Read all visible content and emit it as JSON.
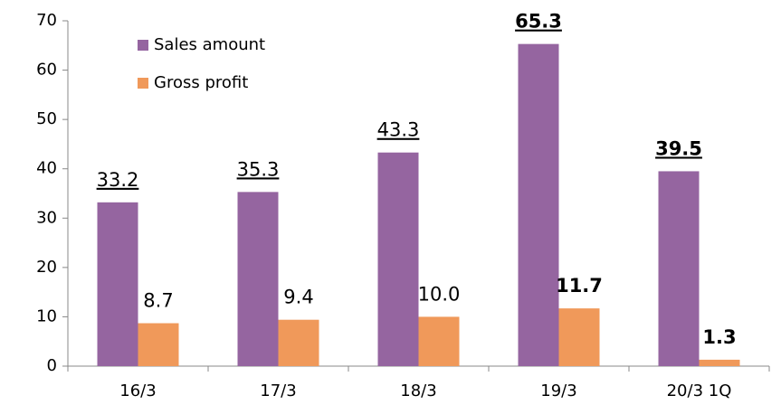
{
  "chart_data": {
    "type": "bar",
    "categories": [
      "16/3",
      "17/3",
      "18/3",
      "19/3",
      "20/3 1Q"
    ],
    "series": [
      {
        "name": "Sales amount",
        "color": "#9565a0",
        "values": [
          33.2,
          35.3,
          43.3,
          65.3,
          39.5
        ],
        "label_underline": true,
        "label_bold": [
          false,
          false,
          false,
          true,
          true
        ]
      },
      {
        "name": "Gross profit",
        "color": "#f0995a",
        "values": [
          8.7,
          9.4,
          10.0,
          11.7,
          1.3
        ],
        "value_labels": [
          "8.7",
          "9.4",
          "10.0",
          "11.7",
          "1.3"
        ],
        "label_underline": false,
        "label_bold": [
          false,
          false,
          false,
          true,
          true
        ]
      }
    ],
    "ylim": [
      0,
      70
    ],
    "yticks": [
      0,
      10,
      20,
      30,
      40,
      50,
      60,
      70
    ],
    "grid": false,
    "legend": "top-left"
  }
}
